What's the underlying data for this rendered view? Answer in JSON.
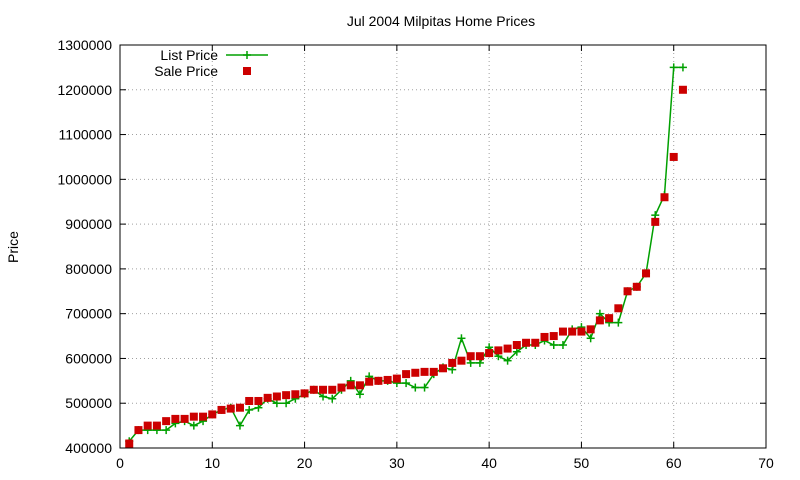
{
  "chart_data": {
    "type": "line",
    "title": "Jul 2004 Milpitas Home Prices",
    "xlabel": "",
    "ylabel": "Price",
    "xlim": [
      0,
      70
    ],
    "ylim": [
      400000,
      1300000
    ],
    "x_ticks": [
      0,
      10,
      20,
      30,
      40,
      50,
      60,
      70
    ],
    "y_ticks": [
      400000,
      500000,
      600000,
      700000,
      800000,
      900000,
      1000000,
      1100000,
      1200000,
      1300000
    ],
    "x_tick_labels": [
      "0",
      "10",
      "20",
      "30",
      "40",
      "50",
      "60",
      "70"
    ],
    "y_tick_labels": [
      "400000",
      "500000",
      "600000",
      "700000",
      "800000",
      "900000",
      "1000000",
      "1100000",
      "1200000",
      "1300000"
    ],
    "grid": true,
    "legend_position": "top-left",
    "x": [
      1,
      2,
      3,
      4,
      5,
      6,
      7,
      8,
      9,
      10,
      11,
      12,
      13,
      14,
      15,
      16,
      17,
      18,
      19,
      20,
      21,
      22,
      23,
      24,
      25,
      26,
      27,
      28,
      29,
      30,
      31,
      32,
      33,
      34,
      35,
      36,
      37,
      38,
      39,
      40,
      41,
      42,
      43,
      44,
      45,
      46,
      47,
      48,
      49,
      50,
      51,
      52,
      53,
      54,
      55,
      56,
      57,
      58,
      59,
      60,
      61
    ],
    "series": [
      {
        "name": "List Price",
        "style": "line-plus",
        "color": "#00a000",
        "values": [
          415000,
          440000,
          440000,
          440000,
          440000,
          455000,
          460000,
          450000,
          460000,
          475000,
          485000,
          490000,
          450000,
          485000,
          490000,
          510000,
          500000,
          500000,
          510000,
          520000,
          530000,
          515000,
          510000,
          530000,
          550000,
          520000,
          560000,
          550000,
          550000,
          545000,
          545000,
          535000,
          535000,
          565000,
          580000,
          575000,
          645000,
          590000,
          590000,
          625000,
          605000,
          595000,
          615000,
          630000,
          630000,
          640000,
          630000,
          630000,
          665000,
          670000,
          645000,
          700000,
          680000,
          680000,
          750000,
          760000,
          790000,
          920000,
          965000,
          1250000,
          1250000
        ]
      },
      {
        "name": "Sale Price",
        "style": "square",
        "color": "#cc0000",
        "values": [
          410000,
          440000,
          450000,
          450000,
          460000,
          465000,
          465000,
          470000,
          470000,
          475000,
          485000,
          488000,
          490000,
          505000,
          505000,
          512000,
          515000,
          518000,
          520000,
          522000,
          530000,
          530000,
          530000,
          535000,
          540000,
          540000,
          548000,
          550000,
          552000,
          555000,
          565000,
          568000,
          570000,
          570000,
          578000,
          590000,
          595000,
          605000,
          605000,
          612000,
          618000,
          622000,
          630000,
          635000,
          635000,
          648000,
          650000,
          660000,
          660000,
          660000,
          665000,
          685000,
          690000,
          712000,
          750000,
          760000,
          790000,
          905000,
          960000,
          1050000,
          1200000
        ]
      }
    ]
  }
}
